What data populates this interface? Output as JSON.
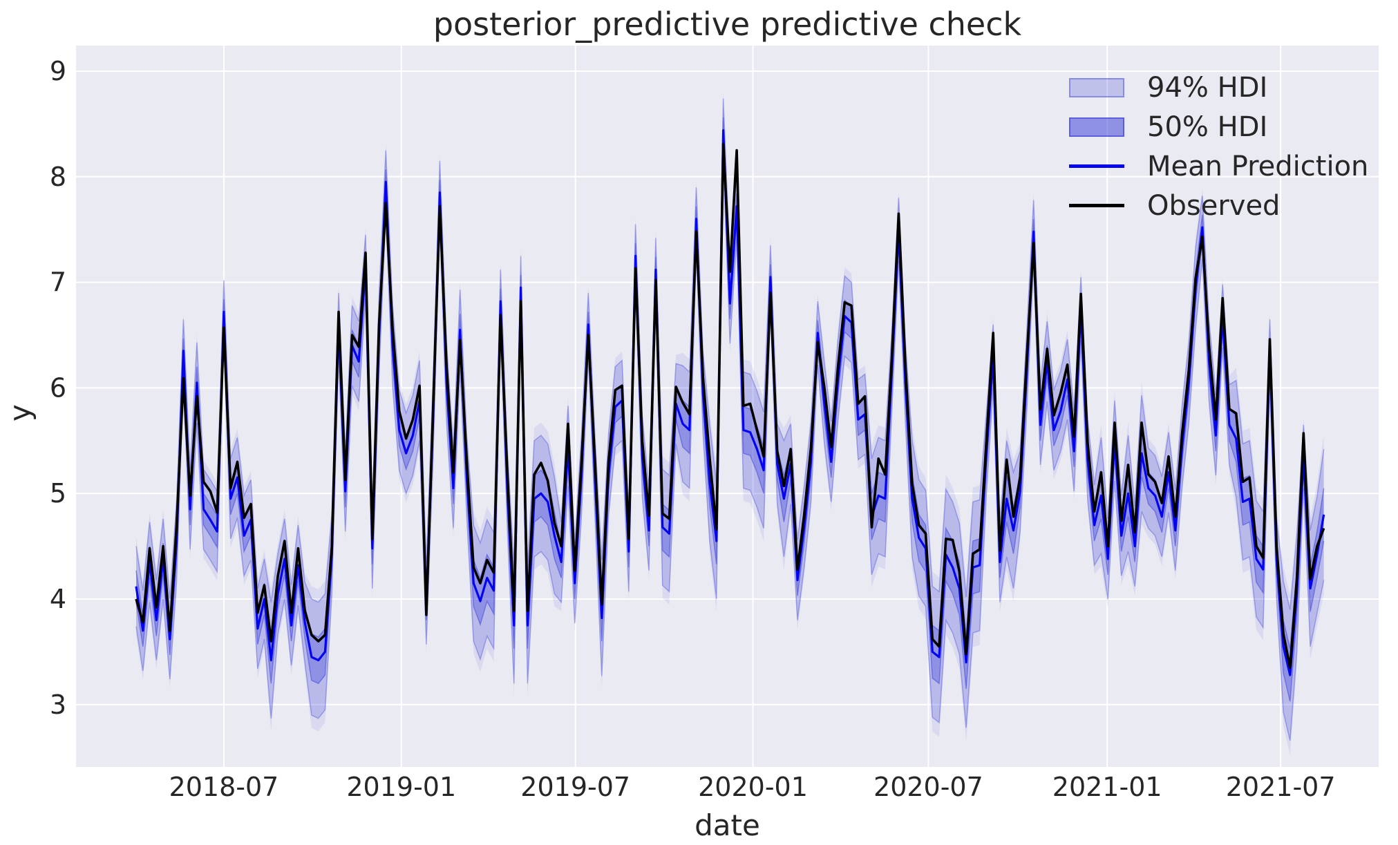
{
  "figure": {
    "title": "posterior_predictive predictive check"
  },
  "axes": {
    "xlabel": "date",
    "ylabel": "y"
  },
  "legend": {
    "items": [
      {
        "label": "94% HDI",
        "swatch": "band-light"
      },
      {
        "label": "50% HDI",
        "swatch": "band-dark"
      },
      {
        "label": "Mean Prediction",
        "swatch": "line-blue"
      },
      {
        "label": "Observed",
        "swatch": "line-black"
      }
    ]
  },
  "colors": {
    "figure_bg": "#ffffff",
    "axes_bg": "#eaeaf2",
    "grid": "#ffffff",
    "text": "#262626",
    "band": "#4349d9",
    "mean_line": "#0404ee",
    "observed_line": "#000000"
  },
  "chart_data": {
    "type": "line",
    "title": "posterior_predictive predictive check",
    "xlabel": "date",
    "ylabel": "y",
    "grid": true,
    "legend_position": "upper right",
    "x_start_date": "2018-04-01",
    "x_step_days": 7,
    "n_points": 177,
    "ylim": [
      2.4,
      9.25
    ],
    "y_ticks": [
      3,
      4,
      5,
      6,
      7,
      8,
      9
    ],
    "x_ticks": [
      {
        "label": "2018-07",
        "week": 13.0
      },
      {
        "label": "2019-01",
        "week": 39.3
      },
      {
        "label": "2019-07",
        "week": 65.1
      },
      {
        "label": "2020-01",
        "week": 91.4
      },
      {
        "label": "2020-07",
        "week": 117.4
      },
      {
        "label": "2021-01",
        "week": 143.9
      },
      {
        "label": "2021-07",
        "week": 169.6
      }
    ],
    "series": [
      {
        "name": "Mean Prediction",
        "color": "#0404ee",
        "values": [
          4.12,
          3.7,
          4.35,
          3.8,
          4.38,
          3.62,
          4.55,
          6.35,
          4.85,
          6.05,
          4.85,
          4.75,
          4.64,
          6.72,
          4.95,
          5.15,
          4.6,
          4.75,
          3.72,
          4.0,
          3.42,
          4.05,
          4.38,
          3.75,
          4.32,
          3.78,
          3.45,
          3.42,
          3.5,
          4.42,
          6.6,
          5.02,
          6.4,
          6.25,
          7.15,
          4.48,
          6.5,
          7.95,
          6.4,
          5.6,
          5.38,
          5.55,
          5.88,
          3.95,
          5.7,
          7.85,
          6.05,
          5.05,
          6.55,
          5.15,
          4.15,
          3.98,
          4.2,
          4.08,
          6.82,
          5.05,
          3.75,
          6.95,
          3.75,
          4.95,
          5.0,
          4.92,
          4.6,
          4.35,
          5.45,
          4.15,
          5.18,
          6.6,
          5.15,
          3.82,
          5.18,
          5.82,
          5.88,
          4.45,
          7.25,
          5.35,
          4.65,
          7.12,
          4.68,
          4.62,
          5.85,
          5.66,
          5.6,
          7.6,
          5.95,
          5.1,
          4.55,
          8.44,
          6.8,
          7.72,
          5.6,
          5.58,
          5.42,
          5.22,
          7.05,
          5.28,
          4.95,
          5.28,
          4.18,
          4.68,
          5.3,
          6.52,
          5.85,
          5.3,
          6.08,
          6.68,
          6.62,
          5.7,
          5.75,
          4.78,
          4.98,
          4.95,
          6.18,
          7.5,
          6.05,
          4.95,
          4.58,
          4.48,
          3.5,
          3.45,
          4.42,
          4.3,
          4.1,
          3.4,
          4.3,
          4.32,
          5.38,
          6.3,
          4.35,
          4.95,
          4.65,
          5.02,
          6.18,
          7.48,
          5.65,
          6.25,
          5.6,
          5.78,
          6.08,
          5.4,
          6.75,
          5.32,
          4.7,
          4.98,
          4.38,
          5.5,
          4.6,
          5.0,
          4.5,
          5.38,
          5.05,
          4.98,
          4.78,
          5.2,
          4.65,
          5.45,
          6.05,
          6.95,
          7.52,
          6.25,
          5.55,
          6.68,
          5.65,
          5.52,
          4.92,
          4.95,
          4.38,
          4.28,
          6.35,
          4.38,
          3.55,
          3.28,
          4.05,
          5.35,
          4.1,
          4.42,
          4.8
        ]
      },
      {
        "name": "Observed",
        "color": "#000000",
        "values": [
          4.0,
          3.78,
          4.48,
          3.92,
          4.5,
          3.7,
          4.7,
          6.09,
          4.98,
          5.92,
          5.11,
          5.02,
          4.82,
          6.57,
          5.05,
          5.3,
          4.77,
          4.9,
          3.87,
          4.13,
          3.6,
          4.22,
          4.55,
          3.87,
          4.48,
          3.89,
          3.66,
          3.6,
          3.66,
          4.5,
          6.72,
          5.13,
          6.5,
          6.39,
          7.28,
          4.57,
          6.6,
          7.75,
          6.56,
          5.78,
          5.52,
          5.7,
          6.02,
          3.85,
          5.8,
          7.72,
          6.2,
          5.2,
          6.45,
          5.3,
          4.3,
          4.15,
          4.37,
          4.25,
          6.69,
          5.2,
          3.89,
          6.82,
          3.89,
          5.18,
          5.29,
          5.12,
          4.72,
          4.5,
          5.66,
          4.27,
          5.3,
          6.5,
          5.3,
          3.95,
          5.3,
          5.98,
          6.02,
          4.57,
          7.13,
          5.5,
          4.79,
          7.02,
          4.81,
          4.76,
          6.01,
          5.86,
          5.75,
          7.48,
          6.1,
          5.33,
          4.66,
          8.31,
          7.1,
          8.25,
          5.83,
          5.85,
          5.6,
          5.35,
          6.9,
          5.4,
          5.07,
          5.42,
          4.28,
          4.8,
          5.44,
          6.43,
          6.0,
          5.44,
          6.2,
          6.81,
          6.78,
          5.85,
          5.92,
          4.68,
          5.33,
          5.18,
          6.3,
          7.65,
          6.2,
          5.09,
          4.7,
          4.62,
          3.62,
          3.55,
          4.57,
          4.56,
          4.26,
          3.48,
          4.43,
          4.47,
          5.5,
          6.52,
          4.46,
          5.32,
          4.78,
          5.16,
          6.3,
          7.37,
          5.8,
          6.37,
          5.74,
          5.95,
          6.22,
          5.54,
          6.89,
          5.48,
          4.83,
          5.2,
          4.5,
          5.67,
          4.74,
          5.27,
          4.63,
          5.67,
          5.18,
          5.11,
          4.91,
          5.35,
          4.78,
          5.57,
          6.17,
          7.04,
          7.43,
          6.4,
          5.7,
          6.85,
          5.8,
          5.76,
          5.11,
          5.15,
          4.5,
          4.39,
          6.46,
          4.5,
          3.67,
          3.35,
          4.19,
          5.57,
          4.19,
          4.5,
          4.67
        ]
      }
    ],
    "bands": {
      "hdi94": {
        "label": "94% HDI",
        "around": "Mean Prediction",
        "halfwidth_default": 0.38,
        "halfwidth_wide": 0.55,
        "halfwidth_xwide": 0.62,
        "halfwidth_narrow": 0.3,
        "wide_indices": [
          20,
          26,
          27,
          28,
          50,
          51,
          52,
          53,
          56,
          58,
          59,
          60,
          61,
          62,
          69,
          78,
          79,
          81,
          82,
          85,
          86,
          90,
          91,
          92,
          93,
          96,
          109,
          110,
          111,
          115,
          116,
          117,
          129,
          130,
          143,
          147,
          149,
          163,
          164,
          165,
          166,
          167,
          172,
          174,
          175
        ],
        "xwide_indices": [
          118,
          119,
          120,
          121,
          122,
          123,
          124,
          125,
          170,
          171,
          176
        ],
        "narrow_indices": [
          7,
          13,
          30,
          34,
          37,
          45,
          54,
          57,
          67,
          74,
          77,
          83,
          87,
          89,
          94,
          101,
          113,
          127,
          133,
          140,
          158,
          161,
          168,
          173
        ]
      },
      "hdi50": {
        "label": "50% HDI",
        "around": "Mean Prediction",
        "halfwidth_default": 0.15,
        "halfwidth_wide": 0.22,
        "halfwidth_xwide": 0.25,
        "halfwidth_narrow": 0.12
      }
    }
  }
}
